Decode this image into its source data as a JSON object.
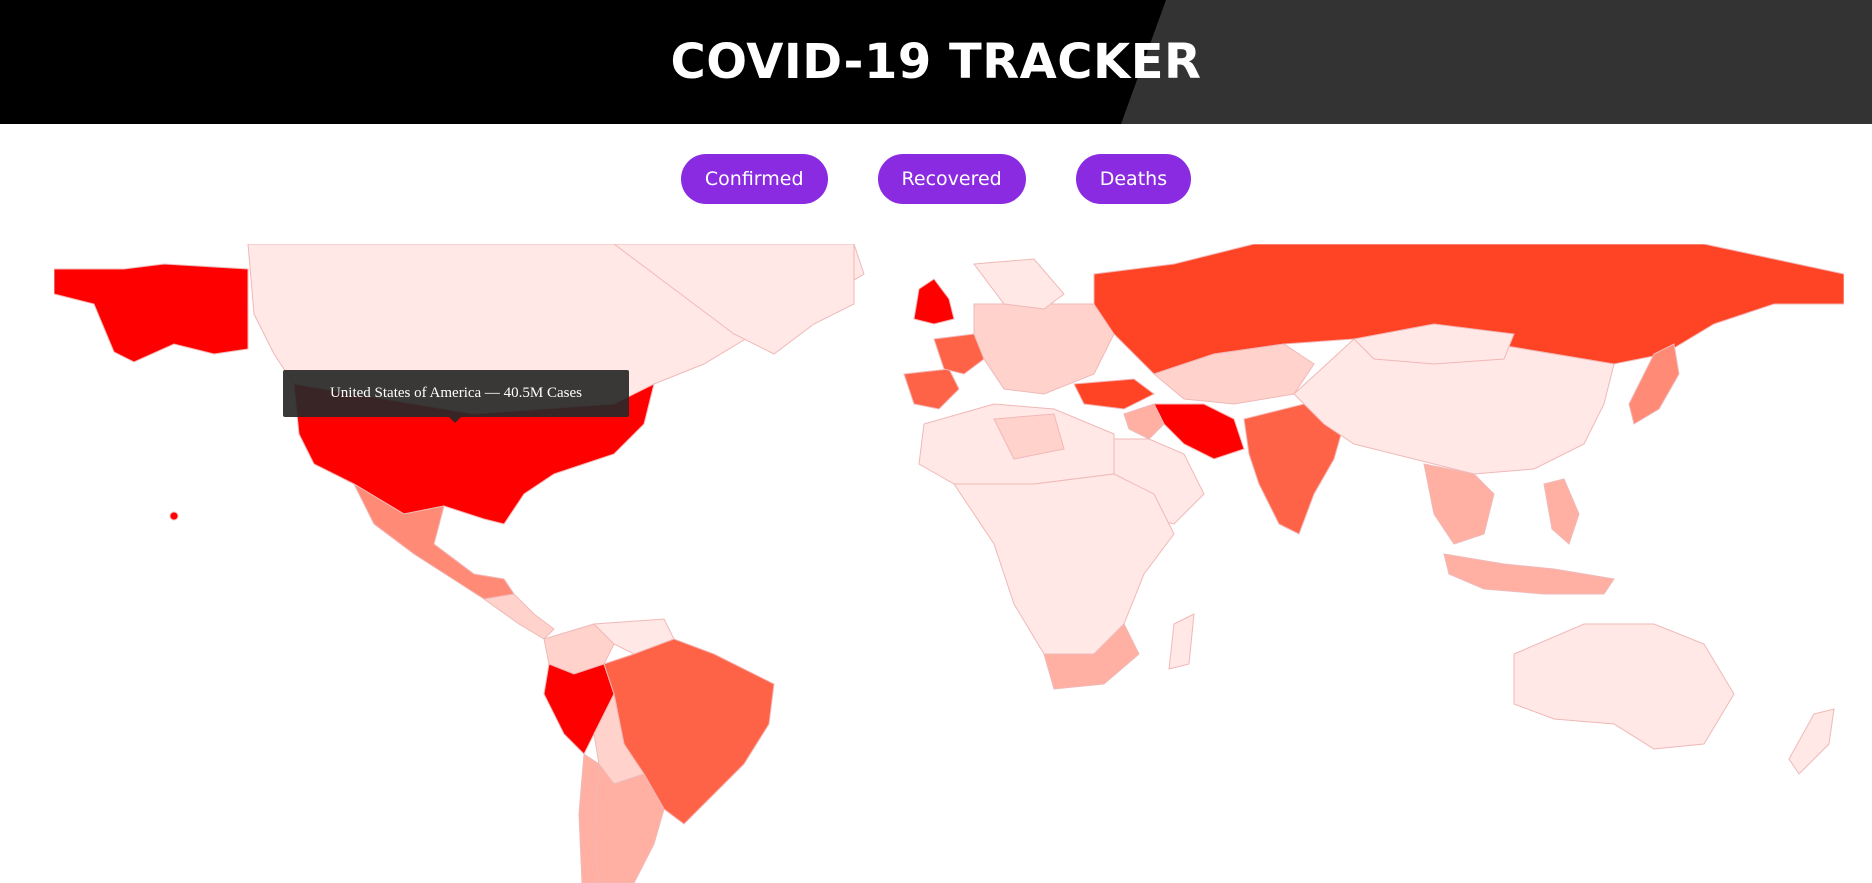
{
  "header": {
    "title": "COVID-19 TRACKER"
  },
  "buttons": [
    {
      "label": "Confirmed"
    },
    {
      "label": "Recovered"
    },
    {
      "label": "Deaths"
    }
  ],
  "tooltip": {
    "text": "United States of America — 40.5M Cases"
  },
  "colors": {
    "header_left": "#000000",
    "header_right": "#333333",
    "button": "#8a2be2",
    "scale": [
      "#ffe8e5",
      "#ffd3cc",
      "#ffb0a3",
      "#ff8a75",
      "#ff6347",
      "#ff4325",
      "#ff0000"
    ]
  },
  "map": {
    "metric": "Confirmed",
    "countries": [
      {
        "name": "Canada",
        "level": 0
      },
      {
        "name": "Greenland",
        "level": 0
      },
      {
        "name": "Alaska",
        "level": 6
      },
      {
        "name": "United States of America",
        "level": 6
      },
      {
        "name": "Mexico",
        "level": 3
      },
      {
        "name": "Central America",
        "level": 1
      },
      {
        "name": "Colombia",
        "level": 1
      },
      {
        "name": "Venezuela",
        "level": 0
      },
      {
        "name": "Peru",
        "level": 6
      },
      {
        "name": "Brazil",
        "level": 4
      },
      {
        "name": "Bolivia",
        "level": 1
      },
      {
        "name": "Argentina",
        "level": 2
      },
      {
        "name": "Chile",
        "level": 2
      },
      {
        "name": "United Kingdom",
        "level": 6
      },
      {
        "name": "Spain",
        "level": 4
      },
      {
        "name": "France",
        "level": 4
      },
      {
        "name": "Europe",
        "level": 1
      },
      {
        "name": "Scandinavia",
        "level": 0
      },
      {
        "name": "Turkey",
        "level": 5
      },
      {
        "name": "Russia",
        "level": 5
      },
      {
        "name": "Kazakhstan",
        "level": 1
      },
      {
        "name": "Iran",
        "level": 6
      },
      {
        "name": "Iraq",
        "level": 2
      },
      {
        "name": "Arabia",
        "level": 0
      },
      {
        "name": "India",
        "level": 4
      },
      {
        "name": "China",
        "level": 0
      },
      {
        "name": "Mongolia",
        "level": 0
      },
      {
        "name": "Southeast Asia",
        "level": 2
      },
      {
        "name": "Indonesia",
        "level": 2
      },
      {
        "name": "Philippines",
        "level": 2
      },
      {
        "name": "Japan",
        "level": 3
      },
      {
        "name": "North Africa",
        "level": 0
      },
      {
        "name": "Libya",
        "level": 1
      },
      {
        "name": "Central Africa",
        "level": 0
      },
      {
        "name": "South Africa",
        "level": 2
      },
      {
        "name": "Madagascar",
        "level": 0
      },
      {
        "name": "Australia",
        "level": 0
      },
      {
        "name": "New Zealand",
        "level": 0
      }
    ]
  }
}
